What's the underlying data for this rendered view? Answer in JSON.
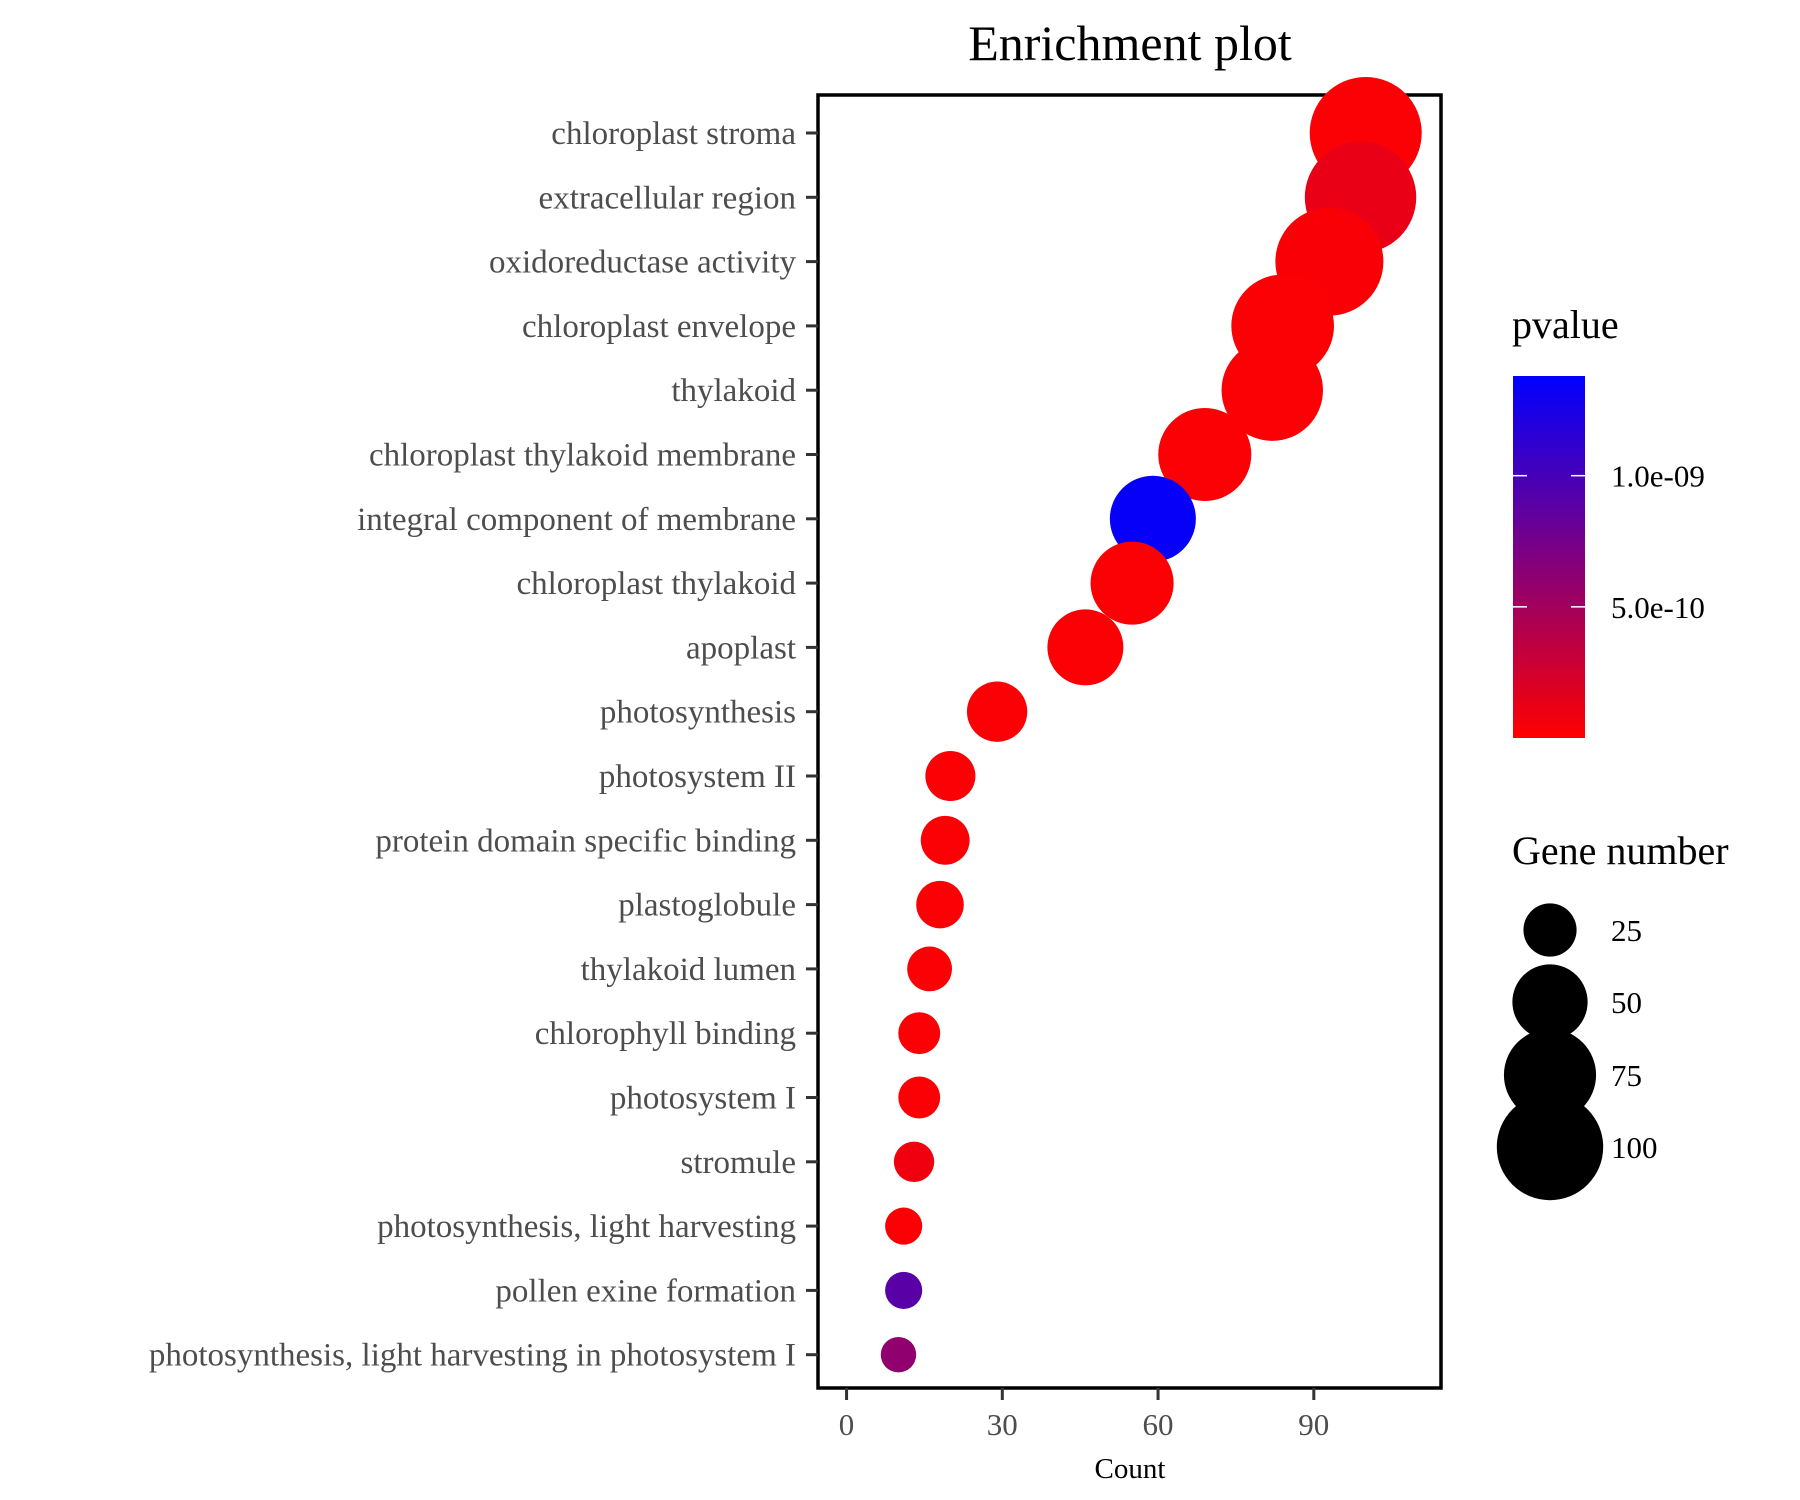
{
  "chart_data": {
    "type": "scatter",
    "title": "Enrichment plot",
    "xlabel": "Count",
    "ylabel": "",
    "xlim": [
      -5.5,
      114.5
    ],
    "xticks": [
      0,
      30,
      60,
      90
    ],
    "grid": false,
    "legend_placement": "right",
    "categories": [
      "chloroplast stroma",
      "extracellular region",
      "oxidoreductase activity",
      "chloroplast envelope",
      "thylakoid",
      "chloroplast thylakoid membrane",
      "integral component of membrane",
      "chloroplast thylakoid",
      "apoplast",
      "photosynthesis",
      "photosystem II",
      "protein domain specific binding",
      "plastoglobule",
      "thylakoid lumen",
      "chlorophyll binding",
      "photosystem I",
      "stromule",
      "photosynthesis, light harvesting",
      "pollen exine formation",
      "photosynthesis, light harvesting in photosystem I"
    ],
    "x": [
      100,
      99,
      93,
      84,
      82,
      69,
      59,
      55,
      46,
      29,
      20,
      19,
      18,
      16,
      14,
      14,
      13,
      11,
      11,
      10
    ],
    "size": [
      100,
      99,
      93,
      84,
      82,
      69,
      59,
      55,
      46,
      29,
      20,
      19,
      18,
      16,
      14,
      14,
      13,
      11,
      11,
      10
    ],
    "pvalue": [
      2e-11,
      1.2e-10,
      3e-11,
      2e-11,
      2e-11,
      2e-11,
      1.35e-09,
      2e-11,
      2e-11,
      2e-11,
      2e-11,
      2e-11,
      2e-11,
      2e-11,
      2e-11,
      2e-11,
      8e-11,
      2e-11,
      9e-10,
      6e-10
    ],
    "color_legend": {
      "title": "pvalue",
      "range": [
        0,
        1.38e-09
      ],
      "low_color": "#ff0000",
      "high_color": "#0000ff",
      "ticks": [
        {
          "value": 1e-09,
          "label": "1.0e-09"
        },
        {
          "value": 5e-10,
          "label": "5.0e-10"
        }
      ]
    },
    "size_legend": {
      "title": "Gene number",
      "entries": [
        {
          "value": 25,
          "label": "25"
        },
        {
          "value": 50,
          "label": "50"
        },
        {
          "value": 75,
          "label": "75"
        },
        {
          "value": 100,
          "label": "100"
        }
      ]
    }
  }
}
